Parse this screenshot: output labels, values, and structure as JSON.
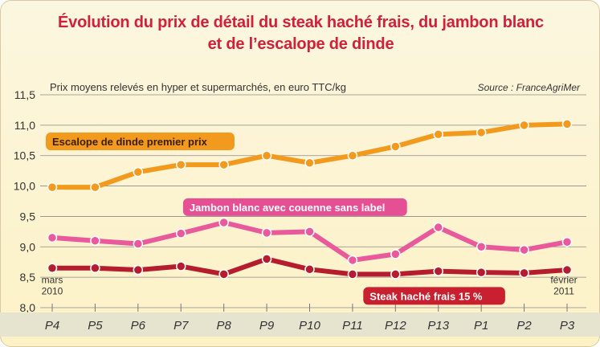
{
  "title_lines": [
    "Évolution du prix de détail du steak haché frais, du jambon blanc",
    "et de l’escalope de dinde"
  ],
  "chart_data": {
    "type": "line",
    "subtitle": "Prix moyens relevés en hyper et supermarchés, en euro TTC/kg",
    "source": "Source : FranceAgriMer",
    "categories": [
      "P4",
      "P5",
      "P6",
      "P7",
      "P8",
      "P9",
      "P10",
      "P11",
      "P12",
      "P13",
      "P1",
      "P2",
      "P3"
    ],
    "ylim": [
      8.0,
      11.5
    ],
    "yticks": [
      "11,5",
      "11,0",
      "10,5",
      "10,0",
      "9,5",
      "9,0",
      "8,5",
      "8,0"
    ],
    "ytick_values": [
      11.5,
      11.0,
      10.5,
      10.0,
      9.5,
      9.0,
      8.5,
      8.0
    ],
    "grid": true,
    "annotations": [
      {
        "text": "mars 2010",
        "lines": [
          "mars",
          "2010"
        ]
      },
      {
        "text": "février 2011",
        "lines": [
          "février",
          "2011"
        ]
      }
    ],
    "series": [
      {
        "name": "Escalope de dinde premier prix",
        "color": "#f29a1e",
        "label_color": "#f29a1e",
        "values": [
          9.98,
          9.98,
          10.23,
          10.35,
          10.35,
          10.5,
          10.38,
          10.5,
          10.65,
          10.85,
          10.88,
          11.0,
          11.02
        ]
      },
      {
        "name": "Jambon blanc avec couenne sans label",
        "color": "#e85a9b",
        "label_color": "#e54f93",
        "values": [
          9.15,
          9.1,
          9.05,
          9.22,
          9.4,
          9.23,
          9.25,
          8.78,
          8.88,
          9.32,
          9.0,
          8.95,
          9.08
        ]
      },
      {
        "name": "Steak haché frais 15 %",
        "color": "#b51d2e",
        "label_color": "#c8202f",
        "values": [
          8.65,
          8.65,
          8.62,
          8.68,
          8.55,
          8.8,
          8.63,
          8.55,
          8.55,
          8.6,
          8.58,
          8.57,
          8.62
        ]
      }
    ]
  }
}
